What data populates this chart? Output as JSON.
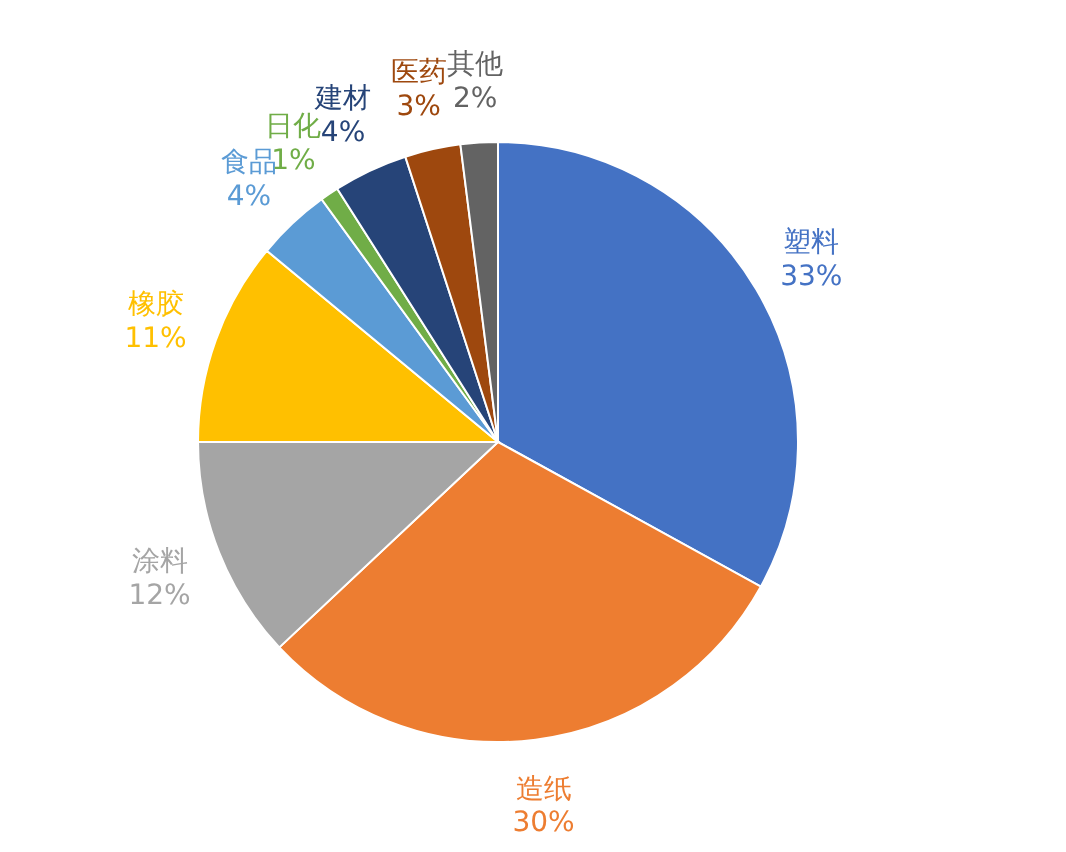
{
  "chart_data": {
    "type": "pie",
    "categories": [
      "塑料",
      "造纸",
      "涂料",
      "橡胶",
      "食品",
      "日化",
      "建材",
      "医药",
      "其他"
    ],
    "values": [
      33,
      30,
      12,
      11,
      4,
      1,
      4,
      3,
      2
    ],
    "value_labels": [
      "33%",
      "30%",
      "12%",
      "11%",
      "4%",
      "1%",
      "4%",
      "3%",
      "2%"
    ],
    "colors": [
      "#4472c4",
      "#ed7d31",
      "#a5a5a5",
      "#ffc000",
      "#5b9bd5",
      "#70ad47",
      "#264478",
      "#9e480e",
      "#636363"
    ],
    "legend": false
  }
}
